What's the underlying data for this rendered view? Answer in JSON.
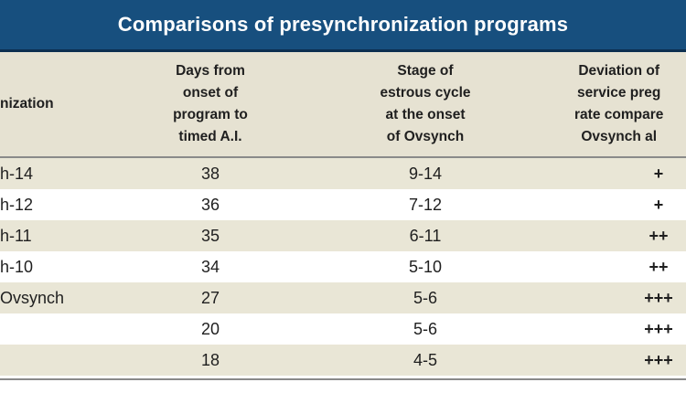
{
  "title": "Comparisons of presynchronization programs",
  "headers": {
    "col1": "nization",
    "col2": "Days from\nonset of\nprogram to\ntimed A.I.",
    "col3": "Stage of\nestrous cycle\nat the onset\nof Ovsynch",
    "col4": "Deviation of\nservice preg\nrate compare\nOvsynch al"
  },
  "rows": [
    {
      "program": "h-14",
      "days": "38",
      "stage": "9-14",
      "deviation": "+"
    },
    {
      "program": "h-12",
      "days": "36",
      "stage": "7-12",
      "deviation": "+"
    },
    {
      "program": "h-11",
      "days": "35",
      "stage": "6-11",
      "deviation": "++"
    },
    {
      "program": "h-10",
      "days": "34",
      "stage": "5-10",
      "deviation": "++"
    },
    {
      "program": "Ovsynch",
      "days": "27",
      "stage": "5-6",
      "deviation": "+++"
    },
    {
      "program": "",
      "days": "20",
      "stage": "5-6",
      "deviation": "+++"
    },
    {
      "program": "",
      "days": "18",
      "stage": "4-5",
      "deviation": "+++"
    }
  ],
  "colors": {
    "title_bg": "#174f7e",
    "header_bg": "#e6e2d2",
    "alt_row_bg": "#e9e6d6"
  }
}
